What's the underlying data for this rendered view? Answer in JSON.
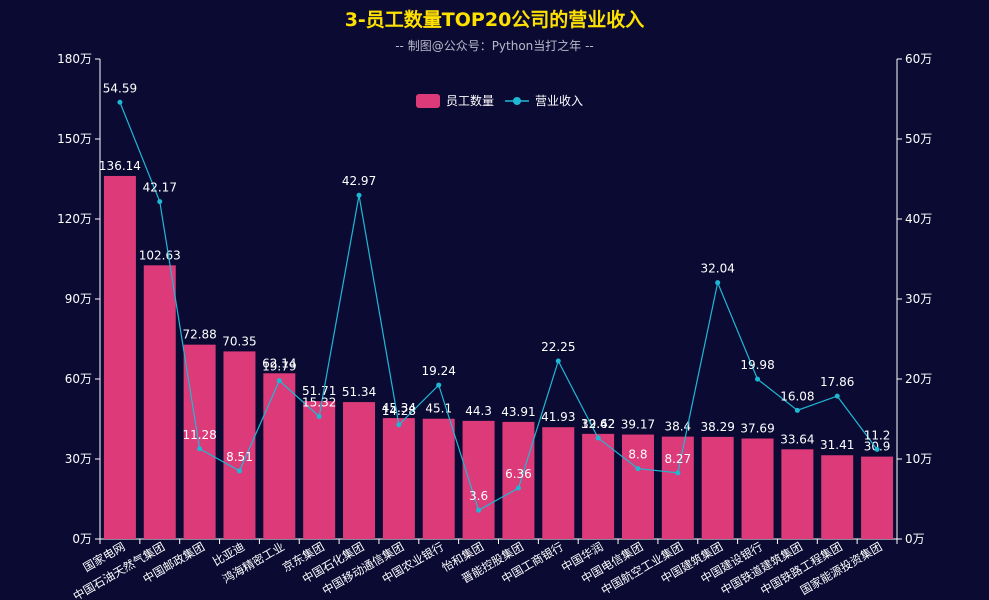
{
  "colors": {
    "background": "#0b0a33",
    "bar": "#dc3a78",
    "line": "#1fb8d4",
    "title": "#ffe100",
    "subtitle": "#b9b9c9",
    "axis_text": "#ffffff",
    "label_text": "#ffffff"
  },
  "chart_data": {
    "type": "bar",
    "title": "3-员工数量TOP20公司的营业收入",
    "subtitle": "-- 制图@公众号：Python当打之年 --",
    "categories": [
      "国家电网",
      "中国石油天然气集团",
      "中国邮政集团",
      "比亚迪",
      "鸿海精密工业",
      "京东集团",
      "中国石化集团",
      "中国移动通信集团",
      "中国农业银行",
      "怡和集团",
      "晋能控股集团",
      "中国工商银行",
      "中国华润",
      "中国电信集团",
      "中国航空工业集团",
      "中国建筑集团",
      "中国建设银行",
      "中国铁道建筑集团",
      "中国铁路工程集团",
      "国家能源投资集团"
    ],
    "series": [
      {
        "name": "员工数量",
        "type": "bar",
        "axis": "left",
        "values": [
          136.14,
          102.63,
          72.88,
          70.35,
          62.14,
          51.71,
          51.34,
          45.34,
          45.1,
          44.3,
          43.91,
          41.93,
          39.42,
          39.17,
          38.4,
          38.29,
          37.69,
          33.64,
          31.41,
          30.9
        ]
      },
      {
        "name": "营业收入",
        "type": "line",
        "axis": "right",
        "values": [
          54.59,
          42.17,
          11.28,
          8.51,
          19.79,
          15.32,
          42.97,
          14.28,
          19.24,
          3.6,
          6.36,
          22.25,
          12.62,
          8.8,
          8.27,
          32.04,
          19.98,
          16.08,
          17.86,
          11.2
        ]
      }
    ],
    "y_left": {
      "min": 0,
      "max": 180,
      "ticks": [
        "0万",
        "30万",
        "60万",
        "90万",
        "120万",
        "150万",
        "180万"
      ]
    },
    "y_right": {
      "min": 0,
      "max": 60,
      "ticks": [
        "0万",
        "10万",
        "20万",
        "30万",
        "40万",
        "50万",
        "60万"
      ]
    },
    "legend_position": "top-center",
    "grid": false
  }
}
